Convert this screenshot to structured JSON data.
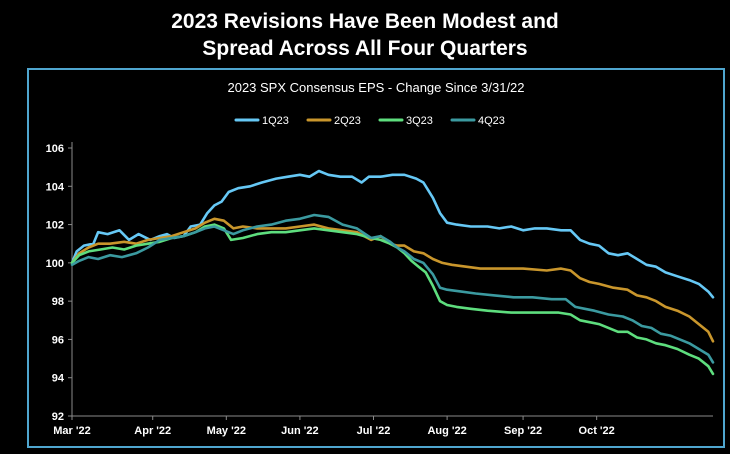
{
  "headline": {
    "line1": "2023 Revisions Have Been Modest and",
    "line2": "Spread Across All Four Quarters"
  },
  "colors": {
    "background": "#000000",
    "frame": "#4fa6cf",
    "text": "#ffffff",
    "axis": "#8a8a8a"
  },
  "chart_data": {
    "type": "line",
    "title": "2023 SPX Consensus EPS - Change Since 3/31/22",
    "xlabel": "",
    "ylabel": "",
    "ylim": [
      92,
      106
    ],
    "yticks": [
      92,
      94,
      96,
      98,
      100,
      102,
      104,
      106
    ],
    "xlim": [
      0,
      270
    ],
    "xticks": [
      {
        "label": "Mar '22",
        "x": 0
      },
      {
        "label": "Apr '22",
        "x": 34
      },
      {
        "label": "May '22",
        "x": 65
      },
      {
        "label": "Jun '22",
        "x": 96
      },
      {
        "label": "Jul '22",
        "x": 127
      },
      {
        "label": "Aug '22",
        "x": 158
      },
      {
        "label": "Sep '22",
        "x": 190
      },
      {
        "label": "Oct '22",
        "x": 221
      }
    ],
    "x_units": "days since Mar 1 '22",
    "grid": false,
    "legend": "top-center",
    "series": [
      {
        "name": "1Q23",
        "color": "#66c8f5",
        "points": [
          [
            0,
            100
          ],
          [
            2,
            100.6
          ],
          [
            5,
            100.9
          ],
          [
            9,
            101
          ],
          [
            11,
            101.6
          ],
          [
            15,
            101.5
          ],
          [
            20,
            101.7
          ],
          [
            24,
            101.2
          ],
          [
            28,
            101.5
          ],
          [
            33,
            101.2
          ],
          [
            37,
            101.4
          ],
          [
            40,
            101.5
          ],
          [
            43,
            101.3
          ],
          [
            47,
            101.4
          ],
          [
            50,
            101.9
          ],
          [
            54,
            102
          ],
          [
            57,
            102.6
          ],
          [
            60,
            103
          ],
          [
            63,
            103.2
          ],
          [
            66,
            103.7
          ],
          [
            70,
            103.9
          ],
          [
            75,
            104
          ],
          [
            80,
            104.2
          ],
          [
            86,
            104.4
          ],
          [
            91,
            104.5
          ],
          [
            96,
            104.6
          ],
          [
            100,
            104.5
          ],
          [
            104,
            104.8
          ],
          [
            108,
            104.6
          ],
          [
            113,
            104.5
          ],
          [
            118,
            104.5
          ],
          [
            122,
            104.2
          ],
          [
            125,
            104.5
          ],
          [
            130,
            104.5
          ],
          [
            135,
            104.6
          ],
          [
            140,
            104.6
          ],
          [
            145,
            104.4
          ],
          [
            148,
            104.2
          ],
          [
            150,
            103.8
          ],
          [
            152,
            103.4
          ],
          [
            155,
            102.6
          ],
          [
            158,
            102.1
          ],
          [
            162,
            102
          ],
          [
            168,
            101.9
          ],
          [
            175,
            101.9
          ],
          [
            180,
            101.8
          ],
          [
            185,
            101.9
          ],
          [
            190,
            101.7
          ],
          [
            195,
            101.8
          ],
          [
            200,
            101.8
          ],
          [
            206,
            101.7
          ],
          [
            210,
            101.7
          ],
          [
            214,
            101.2
          ],
          [
            218,
            101
          ],
          [
            222,
            100.9
          ],
          [
            226,
            100.5
          ],
          [
            230,
            100.4
          ],
          [
            234,
            100.5
          ],
          [
            238,
            100.2
          ],
          [
            242,
            99.9
          ],
          [
            246,
            99.8
          ],
          [
            250,
            99.5
          ],
          [
            255,
            99.3
          ],
          [
            260,
            99.1
          ],
          [
            264,
            98.9
          ],
          [
            268,
            98.5
          ],
          [
            270,
            98.2
          ]
        ]
      },
      {
        "name": "2Q23",
        "color": "#c9962c",
        "points": [
          [
            0,
            100
          ],
          [
            3,
            100.5
          ],
          [
            7,
            100.8
          ],
          [
            11,
            101
          ],
          [
            16,
            101
          ],
          [
            22,
            101.1
          ],
          [
            27,
            101
          ],
          [
            32,
            101.2
          ],
          [
            37,
            101.3
          ],
          [
            42,
            101.4
          ],
          [
            47,
            101.6
          ],
          [
            52,
            101.8
          ],
          [
            56,
            102.1
          ],
          [
            60,
            102.3
          ],
          [
            64,
            102.2
          ],
          [
            68,
            101.8
          ],
          [
            72,
            101.9
          ],
          [
            78,
            101.8
          ],
          [
            84,
            101.8
          ],
          [
            90,
            101.8
          ],
          [
            96,
            101.9
          ],
          [
            102,
            102
          ],
          [
            108,
            101.8
          ],
          [
            114,
            101.7
          ],
          [
            120,
            101.6
          ],
          [
            126,
            101.2
          ],
          [
            130,
            101.4
          ],
          [
            134,
            101
          ],
          [
            137,
            100.9
          ],
          [
            140,
            100.9
          ],
          [
            144,
            100.6
          ],
          [
            148,
            100.5
          ],
          [
            152,
            100.2
          ],
          [
            156,
            100
          ],
          [
            160,
            99.9
          ],
          [
            166,
            99.8
          ],
          [
            172,
            99.7
          ],
          [
            180,
            99.7
          ],
          [
            190,
            99.7
          ],
          [
            200,
            99.6
          ],
          [
            206,
            99.7
          ],
          [
            210,
            99.6
          ],
          [
            214,
            99.2
          ],
          [
            218,
            99
          ],
          [
            222,
            98.9
          ],
          [
            228,
            98.7
          ],
          [
            234,
            98.6
          ],
          [
            238,
            98.3
          ],
          [
            242,
            98.2
          ],
          [
            246,
            98
          ],
          [
            250,
            97.7
          ],
          [
            255,
            97.5
          ],
          [
            260,
            97.2
          ],
          [
            264,
            96.8
          ],
          [
            268,
            96.4
          ],
          [
            270,
            95.9
          ]
        ]
      },
      {
        "name": "3Q23",
        "color": "#5ede7e",
        "points": [
          [
            0,
            100
          ],
          [
            3,
            100.4
          ],
          [
            7,
            100.6
          ],
          [
            12,
            100.7
          ],
          [
            17,
            100.8
          ],
          [
            22,
            100.7
          ],
          [
            27,
            100.9
          ],
          [
            32,
            101
          ],
          [
            37,
            101.1
          ],
          [
            42,
            101.3
          ],
          [
            47,
            101.4
          ],
          [
            52,
            101.6
          ],
          [
            56,
            101.9
          ],
          [
            60,
            102
          ],
          [
            64,
            101.8
          ],
          [
            67,
            101.2
          ],
          [
            72,
            101.3
          ],
          [
            78,
            101.5
          ],
          [
            84,
            101.6
          ],
          [
            90,
            101.6
          ],
          [
            96,
            101.7
          ],
          [
            102,
            101.8
          ],
          [
            108,
            101.7
          ],
          [
            114,
            101.6
          ],
          [
            120,
            101.5
          ],
          [
            126,
            101.3
          ],
          [
            130,
            101.2
          ],
          [
            134,
            101
          ],
          [
            137,
            100.8
          ],
          [
            140,
            100.5
          ],
          [
            143,
            100.1
          ],
          [
            146,
            99.8
          ],
          [
            149,
            99.5
          ],
          [
            152,
            98.8
          ],
          [
            155,
            98
          ],
          [
            158,
            97.8
          ],
          [
            162,
            97.7
          ],
          [
            168,
            97.6
          ],
          [
            175,
            97.5
          ],
          [
            185,
            97.4
          ],
          [
            195,
            97.4
          ],
          [
            205,
            97.4
          ],
          [
            210,
            97.3
          ],
          [
            214,
            97
          ],
          [
            218,
            96.9
          ],
          [
            222,
            96.8
          ],
          [
            226,
            96.6
          ],
          [
            230,
            96.4
          ],
          [
            234,
            96.4
          ],
          [
            238,
            96.1
          ],
          [
            242,
            96
          ],
          [
            246,
            95.8
          ],
          [
            250,
            95.7
          ],
          [
            255,
            95.5
          ],
          [
            260,
            95.2
          ],
          [
            264,
            95
          ],
          [
            268,
            94.6
          ],
          [
            270,
            94.2
          ]
        ]
      },
      {
        "name": "4Q23",
        "color": "#3b9aa0",
        "points": [
          [
            0,
            99.9
          ],
          [
            3,
            100.1
          ],
          [
            7,
            100.3
          ],
          [
            11,
            100.2
          ],
          [
            16,
            100.4
          ],
          [
            21,
            100.3
          ],
          [
            27,
            100.5
          ],
          [
            32,
            100.8
          ],
          [
            37,
            101.2
          ],
          [
            42,
            101.3
          ],
          [
            47,
            101.4
          ],
          [
            52,
            101.6
          ],
          [
            56,
            101.8
          ],
          [
            60,
            101.9
          ],
          [
            64,
            101.7
          ],
          [
            68,
            101.5
          ],
          [
            72,
            101.7
          ],
          [
            78,
            101.9
          ],
          [
            84,
            102
          ],
          [
            90,
            102.2
          ],
          [
            96,
            102.3
          ],
          [
            102,
            102.5
          ],
          [
            108,
            102.4
          ],
          [
            114,
            102
          ],
          [
            120,
            101.8
          ],
          [
            126,
            101.3
          ],
          [
            130,
            101.4
          ],
          [
            134,
            101.1
          ],
          [
            137,
            100.8
          ],
          [
            140,
            100.6
          ],
          [
            144,
            100.2
          ],
          [
            148,
            100
          ],
          [
            152,
            99.4
          ],
          [
            155,
            98.7
          ],
          [
            158,
            98.6
          ],
          [
            164,
            98.5
          ],
          [
            170,
            98.4
          ],
          [
            178,
            98.3
          ],
          [
            186,
            98.2
          ],
          [
            194,
            98.2
          ],
          [
            202,
            98.1
          ],
          [
            208,
            98.1
          ],
          [
            212,
            97.7
          ],
          [
            216,
            97.6
          ],
          [
            220,
            97.5
          ],
          [
            226,
            97.3
          ],
          [
            232,
            97.2
          ],
          [
            236,
            97
          ],
          [
            240,
            96.7
          ],
          [
            244,
            96.6
          ],
          [
            248,
            96.3
          ],
          [
            252,
            96.2
          ],
          [
            256,
            96
          ],
          [
            260,
            95.8
          ],
          [
            264,
            95.5
          ],
          [
            268,
            95.2
          ],
          [
            270,
            94.8
          ]
        ]
      }
    ]
  }
}
